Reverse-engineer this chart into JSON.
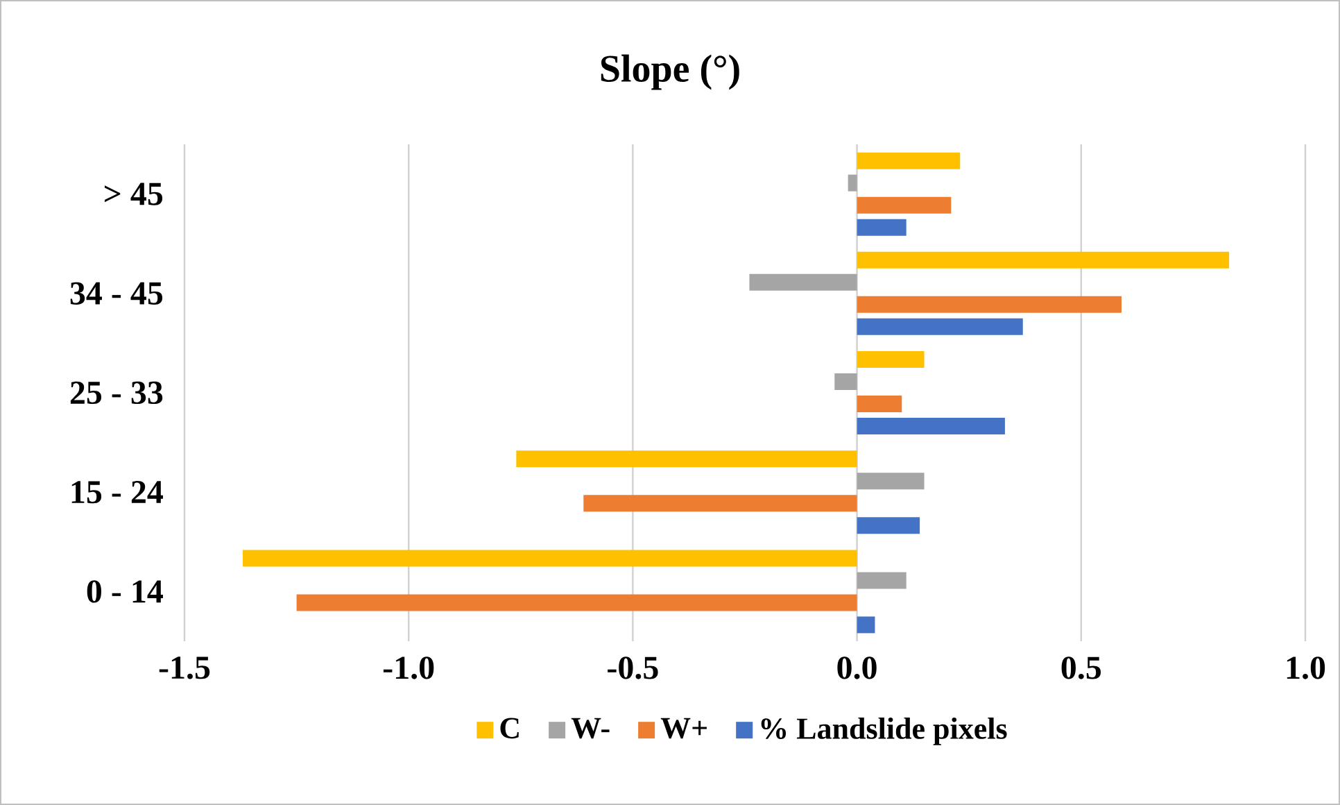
{
  "chart_data": {
    "type": "bar",
    "orientation": "horizontal",
    "title": "Slope (°)",
    "categories": [
      "> 45",
      "34 - 45",
      "25 - 33",
      "15 - 24",
      "0 - 14"
    ],
    "series": [
      {
        "name": "C",
        "color": "#ffc000",
        "values": [
          0.23,
          0.83,
          0.15,
          -0.76,
          -1.37
        ]
      },
      {
        "name": "W-",
        "color": "#a5a5a5",
        "values": [
          -0.02,
          -0.24,
          -0.05,
          0.15,
          0.11
        ]
      },
      {
        "name": "W+",
        "color": "#ed7d31",
        "values": [
          0.21,
          0.59,
          0.1,
          -0.61,
          -1.25
        ]
      },
      {
        "name": "% Landslide pixels",
        "color": "#4472c4",
        "values": [
          0.11,
          0.37,
          0.33,
          0.14,
          0.04
        ]
      }
    ],
    "xlim": [
      -1.5,
      1.0
    ],
    "xticks": [
      -1.5,
      {
        "value": -1.0,
        "label": "-1.0"
      },
      -0.5,
      {
        "value": 0.0,
        "label": "0.0"
      },
      0.5,
      {
        "value": 1.0,
        "label": "1.0"
      }
    ],
    "grid": "x",
    "legend": "bottom"
  }
}
